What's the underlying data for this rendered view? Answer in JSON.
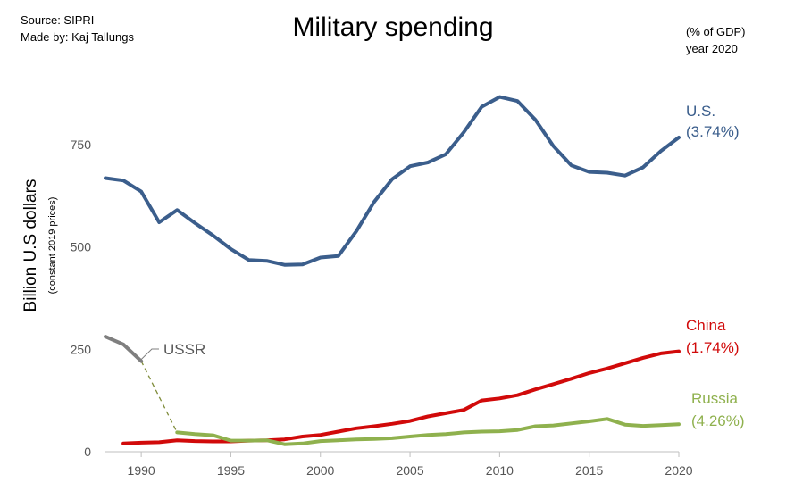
{
  "header": {
    "source": "Source: SIPRI",
    "author": "Made by: Kaj Tallungs",
    "title": "Military spending",
    "gdp_note": "(% of GDP)",
    "gdp_year": "year 2020"
  },
  "chart_data": {
    "type": "line",
    "title": "Military spending",
    "ylabel": "Billion U.S dollars",
    "ylabel_sub": "(constant 2019 prices)",
    "xlim": [
      1988,
      2020
    ],
    "ylim": [
      0,
      900
    ],
    "x_ticks": [
      1990,
      1995,
      2000,
      2005,
      2010,
      2015,
      2020
    ],
    "y_ticks": [
      0,
      250,
      500,
      750
    ],
    "grid": false,
    "series": [
      {
        "name": "U.S.",
        "label_line2": "(3.74%)",
        "color": "#3b5e8c",
        "x": [
          1988,
          1989,
          1990,
          1991,
          1992,
          1993,
          1994,
          1995,
          1996,
          1997,
          1998,
          1999,
          2000,
          2001,
          2002,
          2003,
          2004,
          2005,
          2006,
          2007,
          2008,
          2009,
          2010,
          2011,
          2012,
          2013,
          2014,
          2015,
          2016,
          2017,
          2018,
          2019,
          2020
        ],
        "y": [
          668,
          662,
          635,
          560,
          590,
          558,
          528,
          495,
          468,
          466,
          456,
          457,
          474,
          478,
          538,
          610,
          665,
          697,
          706,
          726,
          780,
          842,
          866,
          856,
          810,
          746,
          699,
          683,
          681,
          674,
          694,
          734,
          767
        ]
      },
      {
        "name": "China",
        "label_line2": "(1.74%)",
        "color": "#d10a0a",
        "x": [
          1989,
          1990,
          1991,
          1992,
          1993,
          1994,
          1995,
          1996,
          1997,
          1998,
          1999,
          2000,
          2001,
          2002,
          2003,
          2004,
          2005,
          2006,
          2007,
          2008,
          2009,
          2010,
          2011,
          2012,
          2013,
          2014,
          2015,
          2016,
          2017,
          2018,
          2019,
          2020
        ],
        "y": [
          20,
          22,
          23,
          28,
          26,
          25,
          25,
          27,
          28,
          30,
          37,
          41,
          49,
          57,
          62,
          68,
          75,
          86,
          94,
          102,
          125,
          130,
          138,
          152,
          165,
          178,
          192,
          203,
          216,
          229,
          240,
          245
        ]
      },
      {
        "name": "Russia",
        "label_line2": "(4.26%)",
        "color": "#8fb14e",
        "x": [
          1992,
          1993,
          1994,
          1995,
          1996,
          1997,
          1998,
          1999,
          2000,
          2001,
          2002,
          2003,
          2004,
          2005,
          2006,
          2007,
          2008,
          2009,
          2010,
          2011,
          2012,
          2013,
          2014,
          2015,
          2016,
          2017,
          2018,
          2019,
          2020
        ],
        "y": [
          47,
          43,
          40,
          27,
          27,
          28,
          18,
          20,
          26,
          28,
          30,
          31,
          33,
          37,
          41,
          43,
          47,
          49,
          50,
          53,
          62,
          64,
          69,
          74,
          80,
          66,
          63,
          65,
          67
        ]
      },
      {
        "name": "USSR",
        "color": "#7f7f7f",
        "x": [
          1988,
          1989,
          1990
        ],
        "y": [
          281,
          262,
          221
        ]
      }
    ],
    "annotations": [
      {
        "type": "dashed-connector",
        "from": [
          1990,
          221
        ],
        "to": [
          1992,
          47
        ],
        "color": "#7f8c3a"
      }
    ]
  }
}
